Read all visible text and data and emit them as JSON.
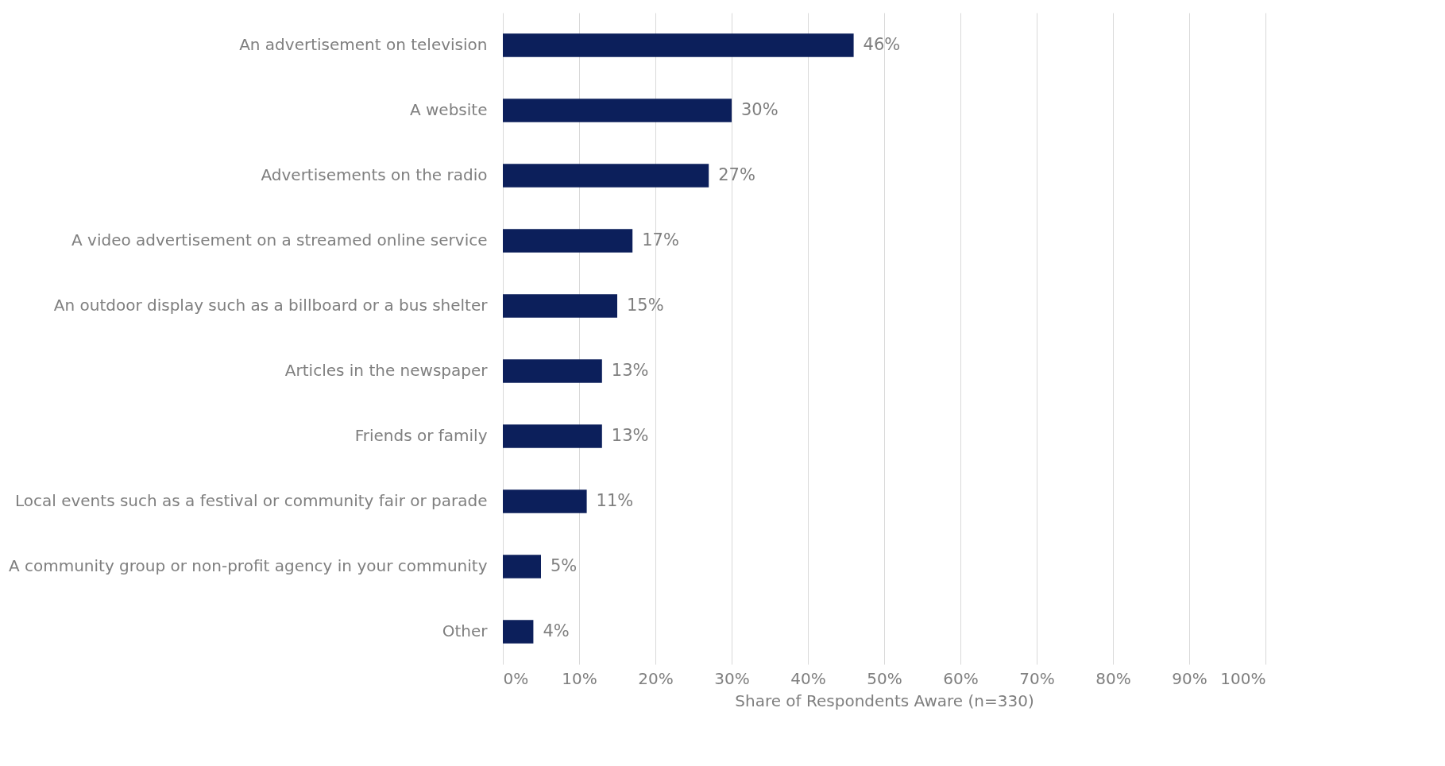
{
  "chart_data": {
    "type": "bar",
    "orientation": "horizontal",
    "xlabel": "Share of Respondents Aware (n=330)",
    "categories": [
      "An advertisement on television",
      "A website",
      "Advertisements on the radio",
      "A video advertisement on a streamed online service",
      "An outdoor display such as a billboard or a bus shelter",
      "Articles in the newspaper",
      "Friends or family",
      "Local events such as a festival or community fair or parade",
      "A community group or non-profit agency in your community",
      "Other"
    ],
    "values": [
      46,
      30,
      27,
      17,
      15,
      13,
      13,
      11,
      5,
      4
    ],
    "value_labels": [
      "46%",
      "30%",
      "27%",
      "17%",
      "15%",
      "13%",
      "13%",
      "11%",
      "5%",
      "4%"
    ],
    "color": "#0c1f5b",
    "xlim": [
      0,
      100
    ],
    "xticks": [
      {
        "value": 0,
        "label": "0%"
      },
      {
        "value": 10,
        "label": "10%"
      },
      {
        "value": 20,
        "label": "20%"
      },
      {
        "value": 30,
        "label": "30%"
      },
      {
        "value": 40,
        "label": "40%"
      },
      {
        "value": 50,
        "label": "50%"
      },
      {
        "value": 60,
        "label": "60%"
      },
      {
        "value": 70,
        "label": "70%"
      },
      {
        "value": 80,
        "label": "80%"
      },
      {
        "value": 90,
        "label": "90%"
      },
      {
        "value": 100,
        "label": "100%"
      }
    ],
    "grid": "x"
  }
}
